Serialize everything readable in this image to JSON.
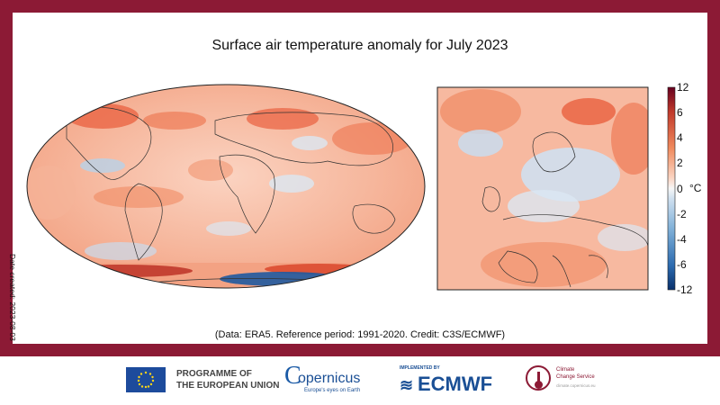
{
  "title": "Surface air temperature anomaly for July 2023",
  "date_note": "Date created: 2023-08-03",
  "credit": "(Data: ERA5. Reference period: 1991-2020. Credit: C3S/ECMWF)",
  "colorbar": {
    "unit": "°C",
    "ticks": [
      "12",
      "6",
      "4",
      "2",
      "0",
      "-2",
      "-4",
      "-6",
      "-12"
    ]
  },
  "maps": {
    "global": "global-anomaly-map",
    "europe": "europe-anomaly-map"
  },
  "footer": {
    "eu_line1": "PROGRAMME OF",
    "eu_line2": "THE EUROPEAN UNION",
    "copernicus": "opernicus",
    "copernicus_c": "C",
    "copernicus_tagline": "Europe's eyes on Earth",
    "ecmwf_small": "IMPLEMENTED BY",
    "ecmwf": "ECMWF",
    "c3s_line1": "Climate",
    "c3s_line2": "Change Service",
    "c3s_url": "climate.copernicus.eu"
  },
  "colors": {
    "frame": "#8c1a35",
    "warm": "#e8583a",
    "cool": "#2c6bb0"
  }
}
